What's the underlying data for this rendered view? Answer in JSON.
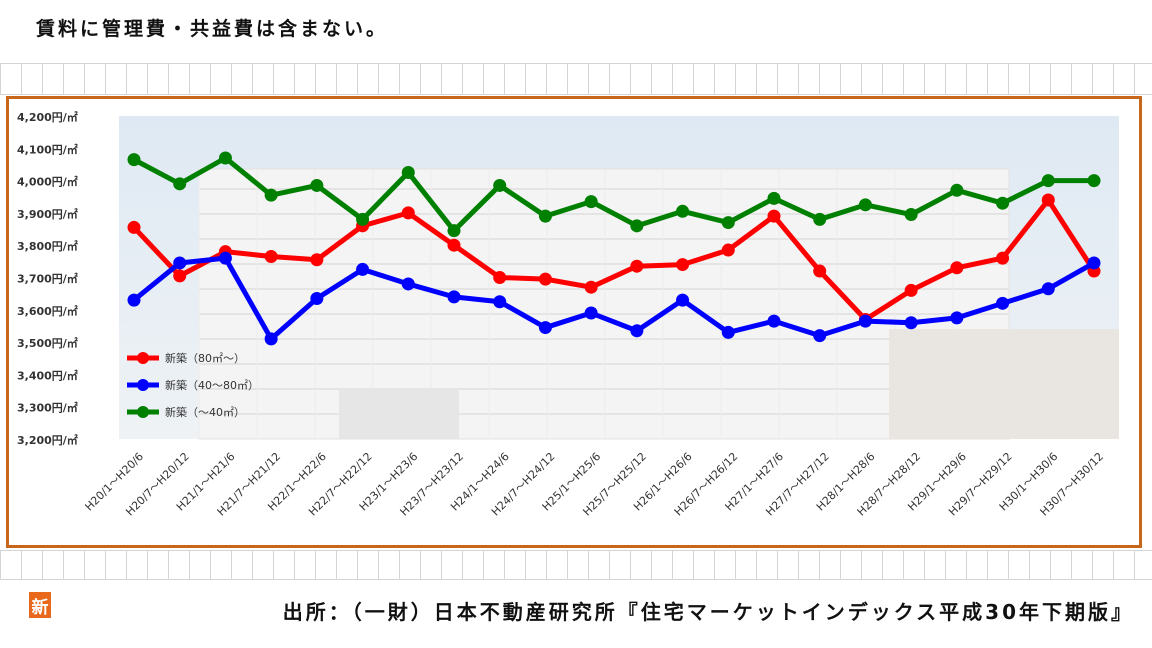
{
  "note": "賃料に管理費・共益費は含まない。",
  "source": "出所：（一財）日本不動産研究所『住宅マーケットインデックス平成30年下期版』",
  "badge": "新",
  "colors": {
    "frame": "#c8661a",
    "badge": "#e8681c"
  },
  "chart_data": {
    "type": "line",
    "title": "",
    "xlabel": "",
    "ylabel": "",
    "ylim": [
      3200,
      4200
    ],
    "y_ticks": [
      4200,
      4100,
      4000,
      3900,
      3800,
      3700,
      3600,
      3500,
      3400,
      3300,
      3200
    ],
    "y_tick_unit": "円/㎡",
    "grid": false,
    "legend_position": "bottom-left",
    "categories": [
      "H20/1～H20/6",
      "H20/7～H20/12",
      "H21/1～H21/6",
      "H21/7～H21/12",
      "H22/1～H22/6",
      "H22/7～H22/12",
      "H23/1～H23/6",
      "H23/7～H23/12",
      "H24/1～H24/6",
      "H24/7～H24/12",
      "H25/1～H25/6",
      "H25/7～H25/12",
      "H26/1～H26/6",
      "H26/7～H26/12",
      "H27/1～H27/6",
      "H27/7～H27/12",
      "H28/1～H28/6",
      "H28/7～H28/12",
      "H29/1～H29/6",
      "H29/7～H29/12",
      "H30/1～H30/6",
      "H30/7～H30/12"
    ],
    "series": [
      {
        "name": "新築（80㎡～）",
        "color": "#ff0000",
        "values": [
          3855,
          3705,
          3780,
          3765,
          3755,
          3860,
          3900,
          3800,
          3700,
          3695,
          3670,
          3735,
          3740,
          3785,
          3890,
          3720,
          3570,
          3660,
          3730,
          3760,
          3940,
          3720
        ]
      },
      {
        "name": "新築（40～80㎡）",
        "color": "#0000ff",
        "values": [
          3630,
          3745,
          3760,
          3510,
          3635,
          3725,
          3680,
          3640,
          3625,
          3545,
          3590,
          3535,
          3630,
          3530,
          3565,
          3520,
          3565,
          3560,
          3575,
          3620,
          3665,
          3745
        ]
      },
      {
        "name": "新築（～40㎡）",
        "color": "#008000",
        "values": [
          4065,
          3990,
          4070,
          3955,
          3985,
          3880,
          4025,
          3845,
          3985,
          3890,
          3935,
          3860,
          3905,
          3870,
          3945,
          3880,
          3925,
          3895,
          3970,
          3930,
          4000,
          4000
        ]
      }
    ]
  }
}
